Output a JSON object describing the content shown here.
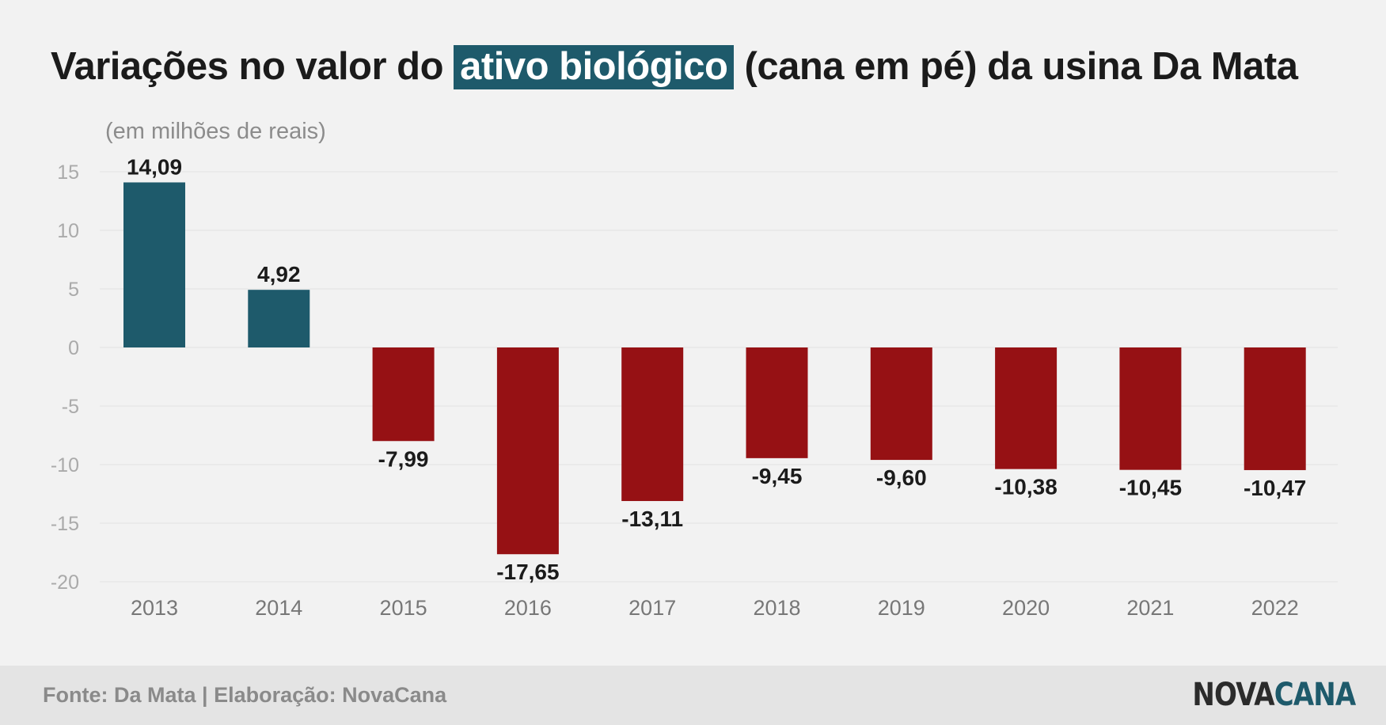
{
  "title": {
    "prefix": "Variações no valor do ",
    "highlight": "ativo biológico",
    "suffix": " (cana em pé) da usina Da Mata"
  },
  "subtitle": "(em milhões de reais)",
  "footer": {
    "source": "Fonte: Da Mata | Elaboração: NovaCana",
    "logo_part1": "NOVA",
    "logo_part2": "CANA"
  },
  "colors": {
    "positive": "#1e5a6b",
    "negative": "#961114",
    "grid": "#e3e3e3",
    "tick_label": "#aaaaaa",
    "category_label": "#777777",
    "value_label": "#1b1b1b"
  },
  "chart_data": {
    "type": "bar",
    "categories": [
      "2013",
      "2014",
      "2015",
      "2016",
      "2017",
      "2018",
      "2019",
      "2020",
      "2021",
      "2022"
    ],
    "values": [
      14.09,
      4.92,
      -7.99,
      -17.65,
      -13.11,
      -9.45,
      -9.6,
      -10.38,
      -10.45,
      -10.47
    ],
    "value_labels": [
      "14,09",
      "4,92",
      "-7,99",
      "-17,65",
      "-13,11",
      "-9,45",
      "-9,60",
      "-10,38",
      "-10,45",
      "-10,47"
    ],
    "ylim": [
      -20,
      15
    ],
    "yticks": [
      15,
      10,
      5,
      0,
      -5,
      -10,
      -15,
      -20
    ],
    "grid": true,
    "legend": "none"
  }
}
